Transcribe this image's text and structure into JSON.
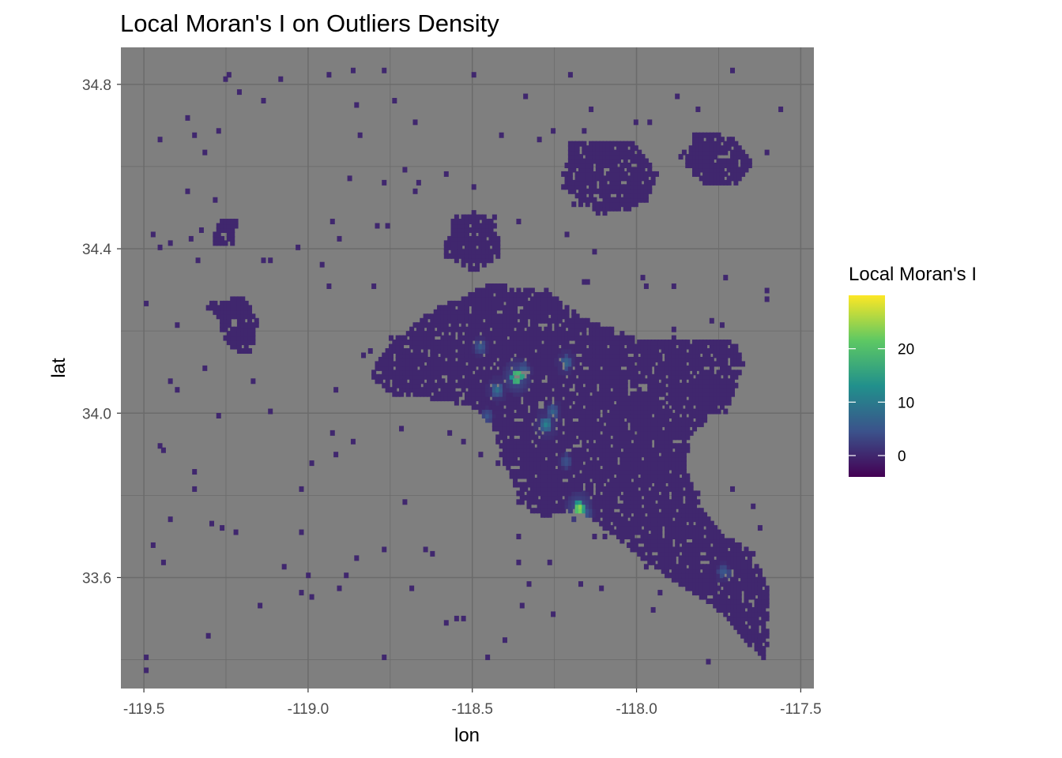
{
  "chart_data": {
    "type": "heatmap",
    "title": "Local Moran's I on Outliers Density",
    "xlabel": "lon",
    "ylabel": "lat",
    "xlim": [
      -119.57,
      -117.46
    ],
    "ylim": [
      33.33,
      34.89
    ],
    "x_ticks": [
      -119.5,
      -119.0,
      -118.5,
      -118.0,
      -117.5
    ],
    "x_tick_labels": [
      "-119.5",
      "-119.0",
      "-118.5",
      "-118.0",
      "-117.5"
    ],
    "y_ticks": [
      33.6,
      34.0,
      34.4,
      34.8
    ],
    "y_tick_labels": [
      "33.6",
      "34.0",
      "34.4",
      "34.8"
    ],
    "x_minor_ticks": [
      -119.25,
      -118.75,
      -118.25,
      -117.75
    ],
    "y_minor_ticks": [
      33.4,
      33.8,
      34.2,
      34.6
    ],
    "grid": true,
    "panel_background": "#7f7f7f",
    "grid_color": "#6b6b6b",
    "legend": {
      "title": "Local Moran's I",
      "position": "right",
      "range": [
        -4,
        30
      ],
      "breaks": [
        0,
        10,
        20
      ],
      "break_labels": [
        "0",
        "10",
        "20"
      ],
      "palette": "viridis",
      "colors": [
        "#440154",
        "#3b528b",
        "#21908c",
        "#5dc863",
        "#fde725"
      ]
    },
    "background_value": 0,
    "clusters": [
      {
        "lon": -118.37,
        "lat": 34.085,
        "value": 29
      },
      {
        "lon": -118.43,
        "lat": 34.055,
        "value": 9
      },
      {
        "lon": -118.28,
        "lat": 33.97,
        "value": 12
      },
      {
        "lon": -118.26,
        "lat": 34.0,
        "value": 7
      },
      {
        "lon": -118.18,
        "lat": 33.765,
        "value": 29
      },
      {
        "lon": -118.16,
        "lat": 33.755,
        "value": 6
      },
      {
        "lon": -118.22,
        "lat": 34.12,
        "value": 8
      },
      {
        "lon": -118.35,
        "lat": 34.1,
        "value": 7
      },
      {
        "lon": -118.48,
        "lat": 34.16,
        "value": 6
      },
      {
        "lon": -118.46,
        "lat": 33.99,
        "value": 5
      },
      {
        "lon": -117.74,
        "lat": 33.61,
        "value": 6
      },
      {
        "lon": -118.22,
        "lat": 33.88,
        "value": 5
      }
    ]
  }
}
